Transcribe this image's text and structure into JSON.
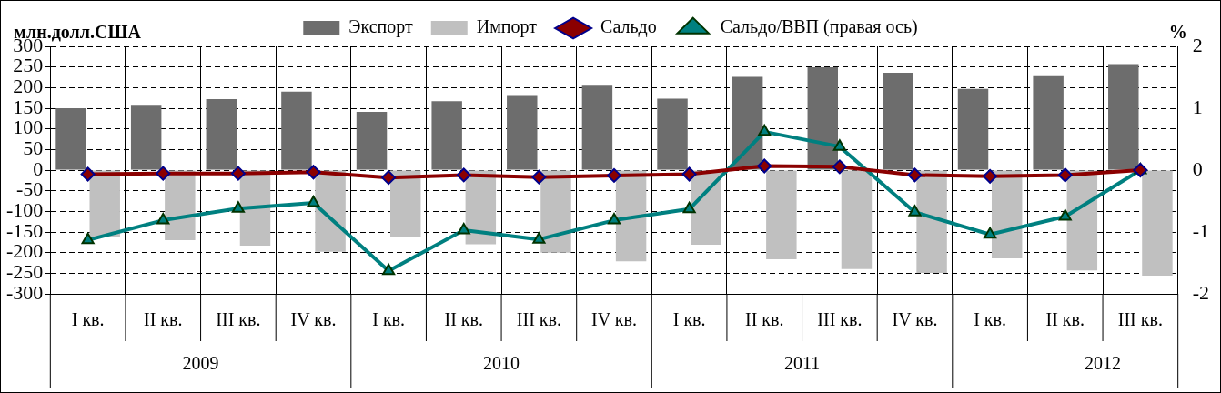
{
  "chart_data": {
    "type": "bar",
    "ylabel": "млн.долл.США",
    "y2label": "%",
    "categories": [
      "I кв.",
      "II кв.",
      "III кв.",
      "IV кв.",
      "I кв.",
      "II кв.",
      "III кв.",
      "IV кв.",
      "I кв.",
      "II кв.",
      "III кв.",
      "IV кв.",
      "I кв.",
      "II кв.",
      "III кв."
    ],
    "annotations": [
      "2009",
      "2010",
      "2011",
      "2012"
    ],
    "series": [
      {
        "name": "Экспорт",
        "color": "#6d6d6d",
        "values": [
          150,
          158,
          172,
          190,
          141,
          167,
          182,
          207,
          173,
          226,
          249,
          236,
          197,
          230,
          257
        ]
      },
      {
        "name": "Импорт",
        "color": "#c0c0c0",
        "values": [
          -163,
          -170,
          -183,
          -198,
          -161,
          -180,
          -200,
          -221,
          -181,
          -216,
          -240,
          -249,
          -214,
          -243,
          -256
        ]
      },
      {
        "name": "Сальдо",
        "type": "line",
        "color": "#8b0000",
        "marker": "diamond",
        "values": [
          -10,
          -8,
          -8,
          -5,
          -18,
          -12,
          -17,
          -13,
          -10,
          10,
          8,
          -12,
          -15,
          -12,
          0
        ]
      },
      {
        "name": "Сальдо/ВВП (правая ось)",
        "type": "line",
        "axis": "y2",
        "color": "#008080",
        "marker": "triangle",
        "values": [
          -1.13,
          -0.81,
          -0.62,
          -0.53,
          -1.63,
          -0.97,
          -1.12,
          -0.81,
          -0.63,
          0.62,
          0.38,
          -0.68,
          -1.04,
          -0.75,
          0
        ]
      }
    ],
    "ylim": [
      -300,
      300
    ],
    "yticks": [
      -300,
      -250,
      -200,
      -150,
      -100,
      -50,
      0,
      50,
      100,
      150,
      200,
      250,
      300
    ],
    "y2lim": [
      -2,
      2
    ],
    "y2ticks": [
      -2,
      -1,
      0,
      1,
      2
    ],
    "grid": true,
    "legend": "top"
  }
}
